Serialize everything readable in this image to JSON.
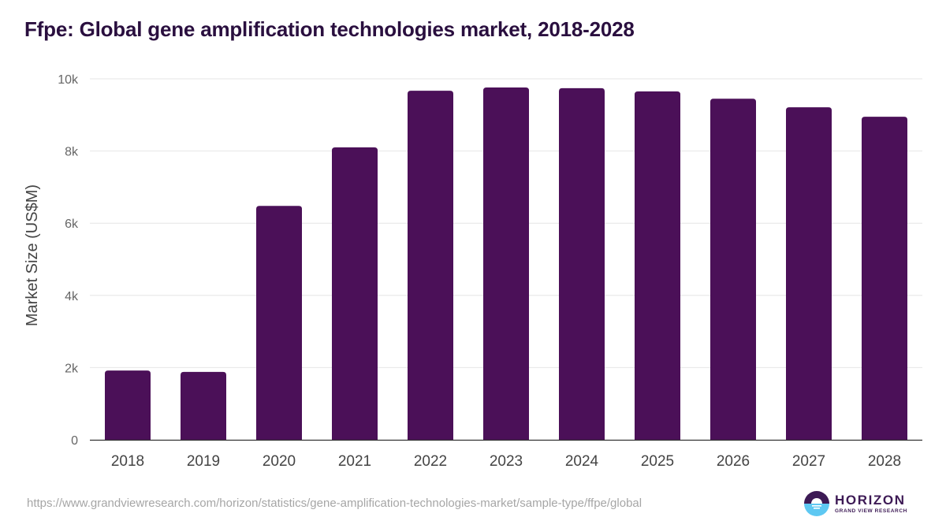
{
  "header": {
    "title": "Ffpe: Global gene amplification technologies market, 2018-2028"
  },
  "footer": {
    "source_url": "https://www.grandviewresearch.com/horizon/statistics/gene-amplification-technologies-market/sample-type/ffpe/global",
    "logo": {
      "icon": "horizon-sun-icon",
      "name": "HORIZON",
      "tagline": "GRAND VIEW RESEARCH"
    }
  },
  "colors": {
    "bar": "#4b1058",
    "title": "#2a0f3f",
    "grid": "#e6e6e6",
    "axis": "#333333",
    "tick_label": "#666666",
    "logo_top": "#3d1a55",
    "logo_bottom": "#5ec8f2"
  },
  "chart_data": {
    "type": "bar",
    "title": "Ffpe: Global gene amplification technologies market, 2018-2028",
    "xlabel": "",
    "ylabel": "Market Size (US$M)",
    "categories": [
      "2018",
      "2019",
      "2020",
      "2021",
      "2022",
      "2023",
      "2024",
      "2025",
      "2026",
      "2027",
      "2028"
    ],
    "values": [
      1920,
      1880,
      6480,
      8100,
      9670,
      9760,
      9740,
      9650,
      9450,
      9210,
      8950
    ],
    "ylim": [
      0,
      10000
    ],
    "yticks": [
      0,
      2000,
      4000,
      6000,
      8000,
      10000
    ],
    "ytick_labels": [
      "0",
      "2k",
      "4k",
      "6k",
      "8k",
      "10k"
    ],
    "grid": true,
    "legend": "none"
  }
}
